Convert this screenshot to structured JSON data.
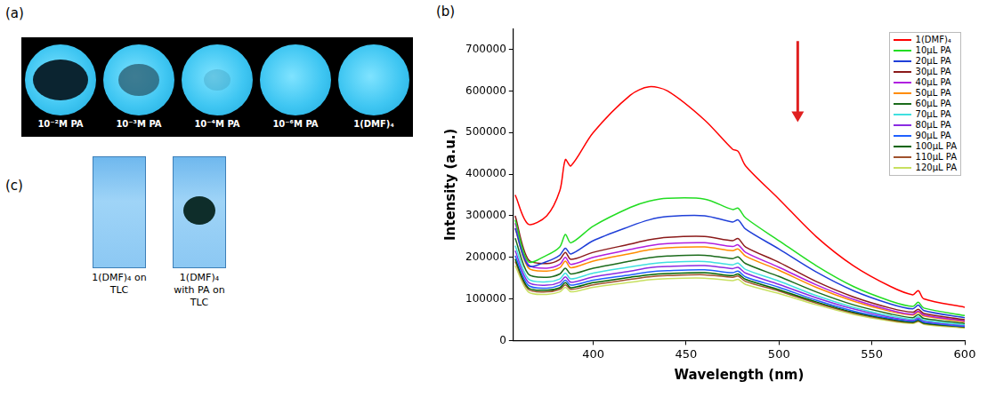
{
  "panels": {
    "a": {
      "label": "(a)",
      "labels": [
        "10⁻²M PA",
        "10⁻³M PA",
        "10⁻⁴M PA",
        "10⁻⁶M PA",
        "1(DMF)₄"
      ]
    },
    "b": {
      "label": "(b)"
    },
    "c": {
      "label": "(c)",
      "labels": [
        "1(DMF)₄ on TLC",
        "1(DMF)₄ with PA on TLC"
      ]
    }
  },
  "chart_data": {
    "type": "line",
    "x_label": "Wavelength (nm)",
    "y_label": "Intensity (a.u.)",
    "x": [
      358,
      365,
      375,
      382,
      385,
      388,
      400,
      420,
      430,
      440,
      460,
      475,
      478,
      482,
      500,
      520,
      540,
      560,
      572,
      575,
      578,
      600
    ],
    "xlim": [
      357,
      600
    ],
    "xticks": [
      400,
      450,
      500,
      550,
      600
    ],
    "ylim": [
      0,
      750000
    ],
    "yticks": [
      0,
      100000,
      200000,
      300000,
      400000,
      500000,
      600000,
      700000
    ],
    "grid": false,
    "legend": "upper right",
    "series": [
      {
        "name": "1(DMF)₄",
        "color": "#ff0000",
        "values": [
          350000,
          280000,
          300000,
          360000,
          435000,
          420000,
          500000,
          590000,
          610000,
          600000,
          530000,
          460000,
          455000,
          420000,
          340000,
          250000,
          180000,
          130000,
          110000,
          120000,
          100000,
          80000
        ]
      },
      {
        "name": "10μL PA",
        "color": "#22dd22",
        "values": [
          290000,
          190000,
          205000,
          225000,
          255000,
          235000,
          275000,
          320000,
          335000,
          342000,
          340000,
          315000,
          318000,
          295000,
          240000,
          180000,
          130000,
          95000,
          82000,
          92000,
          78000,
          60000
        ]
      },
      {
        "name": "20μL PA",
        "color": "#1f3fd8",
        "values": [
          270000,
          180000,
          190000,
          205000,
          222000,
          208000,
          240000,
          275000,
          290000,
          298000,
          300000,
          285000,
          290000,
          268000,
          220000,
          165000,
          120000,
          88000,
          76000,
          85000,
          72000,
          55000
        ]
      },
      {
        "name": "30μL PA",
        "color": "#8b1a1a",
        "values": [
          300000,
          195000,
          185000,
          195000,
          212000,
          195000,
          212000,
          232000,
          242000,
          248000,
          250000,
          240000,
          245000,
          225000,
          188000,
          142000,
          105000,
          78000,
          68000,
          75000,
          65000,
          50000
        ]
      },
      {
        "name": "40μL PA",
        "color": "#b020e0",
        "values": [
          282000,
          183000,
          174000,
          183000,
          200000,
          183000,
          200000,
          219000,
          228000,
          233000,
          235000,
          226000,
          230000,
          212000,
          176000,
          134000,
          99000,
          73000,
          63000,
          71000,
          61000,
          47000
        ]
      },
      {
        "name": "50μL PA",
        "color": "#ff8c00",
        "values": [
          270000,
          175000,
          167000,
          175000,
          191000,
          175000,
          191000,
          209000,
          218000,
          223000,
          225000,
          216000,
          220000,
          203000,
          169000,
          128000,
          95000,
          70000,
          61000,
          68000,
          59000,
          45000
        ]
      },
      {
        "name": "60μL PA",
        "color": "#1b6b1b",
        "values": [
          246000,
          160000,
          152000,
          160000,
          174000,
          160000,
          174000,
          191000,
          199000,
          203000,
          205000,
          197000,
          201000,
          185000,
          154000,
          117000,
          86000,
          64000,
          55000,
          62000,
          53000,
          41000
        ]
      },
      {
        "name": "70μL PA",
        "color": "#40e0e0",
        "values": [
          228000,
          148000,
          141000,
          148000,
          162000,
          148000,
          162000,
          177000,
          184000,
          188000,
          190000,
          182000,
          186000,
          171000,
          143000,
          108000,
          80000,
          59000,
          51000,
          57000,
          49000,
          38000
        ]
      },
      {
        "name": "80μL PA",
        "color": "#8a2be2",
        "values": [
          216000,
          140000,
          133000,
          140000,
          153000,
          140000,
          153000,
          167000,
          175000,
          178000,
          180000,
          173000,
          176000,
          162000,
          135000,
          103000,
          76000,
          56000,
          49000,
          54000,
          47000,
          36000
        ]
      },
      {
        "name": "90μL PA",
        "color": "#2060ff",
        "values": [
          204000,
          133000,
          126000,
          133000,
          145000,
          133000,
          145000,
          158000,
          165000,
          168000,
          170000,
          163000,
          167000,
          153000,
          128000,
          97000,
          71000,
          53000,
          46000,
          51000,
          44000,
          34000
        ]
      },
      {
        "name": "100μL PA",
        "color": "#006400",
        "values": [
          196000,
          127000,
          121000,
          127000,
          139000,
          127000,
          139000,
          152000,
          158000,
          161000,
          163000,
          156000,
          160000,
          147000,
          122000,
          93000,
          68000,
          51000,
          44000,
          49000,
          42000,
          33000
        ]
      },
      {
        "name": "110μL PA",
        "color": "#a0522d",
        "values": [
          190000,
          123000,
          117000,
          123000,
          134000,
          123000,
          134000,
          147000,
          153000,
          156000,
          158000,
          152000,
          155000,
          142000,
          119000,
          90000,
          66000,
          49000,
          43000,
          47000,
          41000,
          32000
        ]
      },
      {
        "name": "120μL PA",
        "color": "#c8e060",
        "values": [
          180000,
          117000,
          111000,
          117000,
          128000,
          117000,
          128000,
          140000,
          146000,
          149000,
          150000,
          144000,
          147000,
          135000,
          113000,
          86000,
          63000,
          47000,
          41000,
          45000,
          39000,
          30000
        ]
      }
    ]
  }
}
